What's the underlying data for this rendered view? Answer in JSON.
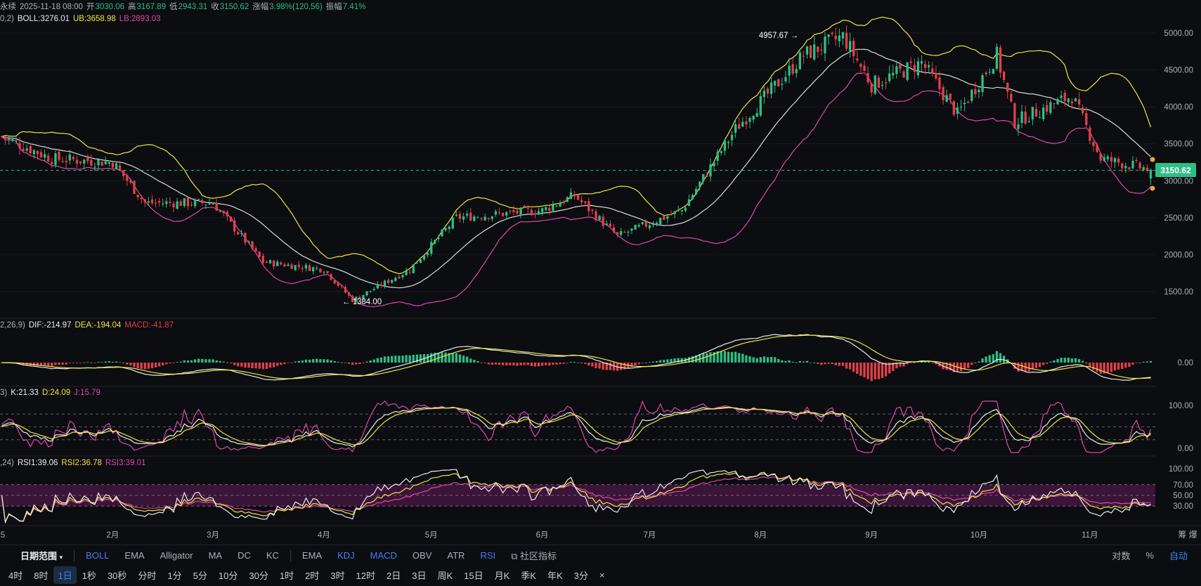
{
  "header": {
    "pair_suffix": "永续",
    "date": "2025-11-18 08:00",
    "open_label": "开",
    "open": "3030.06",
    "high_label": "高",
    "high": "3167.89",
    "low_label": "低",
    "low": "2943.31",
    "close_label": "收",
    "close": "3150.62",
    "change_label": "涨幅",
    "change": "3.98%(120.56)",
    "amp_label": "振幅",
    "amp": "7.41%"
  },
  "boll": {
    "prefix": "0,2)",
    "mid": "BOLL:3276.01",
    "ub": "UB:3658.98",
    "lb": "LB:2893.03"
  },
  "macd": {
    "prefix": "2,26,9)",
    "dif": "DIF:-214.97",
    "dea": "DEA:-194.04",
    "macd": "MACD:-41.87"
  },
  "kdj": {
    "prefix": "3)",
    "k": "K:21.33",
    "d": "D:24.09",
    "j": "J:15.79"
  },
  "rsi": {
    "prefix": ",24)",
    "r1": "RSI1:39.06",
    "r2": "RSI2:36.78",
    "r3": "RSI3:39.01"
  },
  "price_axis": [
    "5000.00",
    "4500.00",
    "4000.00",
    "3500.00",
    "3000.00",
    "2500.00",
    "2000.00",
    "1500.00"
  ],
  "last_price_tag": "3150.62",
  "macd_axis": [
    "0.00"
  ],
  "kdj_axis": [
    "100.00",
    "0.00"
  ],
  "rsi_axis": [
    "100.00",
    "70.00",
    "50.00",
    "30.00"
  ],
  "x_axis": {
    "labels": [
      "5",
      "2月",
      "3月",
      "4月",
      "5月",
      "6月",
      "7月",
      "8月",
      "9月",
      "10月",
      "11月"
    ],
    "right_label": "筹 爆"
  },
  "annotations": {
    "high": "4957.67",
    "low": "1384.00"
  },
  "toolbar_main": {
    "date_range": "日期范围",
    "overlays": [
      "BOLL",
      "EMA",
      "Alligator",
      "MA",
      "DC",
      "KC"
    ],
    "overlay_active": "BOLL",
    "indicators": [
      "EMA",
      "KDJ",
      "MACD",
      "OBV",
      "ATR",
      "RSI"
    ],
    "indicator_active": [
      "KDJ",
      "MACD",
      "RSI"
    ],
    "community": "社区指标",
    "right": [
      "对数",
      "%",
      "自动"
    ]
  },
  "toolbar_periods": {
    "items": [
      "4时",
      "8时",
      "1日",
      "1秒",
      "30秒",
      "分时",
      "1分",
      "5分",
      "10分",
      "30分",
      "1时",
      "2时",
      "3时",
      "12时",
      "2日",
      "3日",
      "周K",
      "15日",
      "月K",
      "季K",
      "年K",
      "3分"
    ],
    "selected": "1日",
    "close": "×"
  },
  "colors": {
    "up": "#2ebd85",
    "down": "#e0404a",
    "boll_mid": "#d9d9d9",
    "boll_ub": "#f0e442",
    "boll_lb": "#e047a8",
    "rsi_band": "#3a1538"
  },
  "chart_data": {
    "type": "candlestick",
    "title": "",
    "timeframe": "1日",
    "x_range": [
      "2025-01",
      "2025-11-18"
    ],
    "month_labels": [
      "2月",
      "3月",
      "4月",
      "5月",
      "6月",
      "7月",
      "8月",
      "9月",
      "10月",
      "11月"
    ],
    "price_ylim": [
      1400,
      5000
    ],
    "price_path_keypoints": [
      {
        "date": "2025-01-01",
        "close": 3600
      },
      {
        "date": "2025-01-15",
        "close": 3300
      },
      {
        "date": "2025-02-01",
        "close": 3250
      },
      {
        "date": "2025-02-10",
        "close": 2700
      },
      {
        "date": "2025-03-01",
        "close": 2700
      },
      {
        "date": "2025-03-15",
        "close": 1900
      },
      {
        "date": "2025-04-01",
        "close": 1800
      },
      {
        "date": "2025-04-09",
        "close": 1384
      },
      {
        "date": "2025-04-25",
        "close": 1800
      },
      {
        "date": "2025-05-08",
        "close": 2500
      },
      {
        "date": "2025-06-01",
        "close": 2600
      },
      {
        "date": "2025-06-10",
        "close": 2800
      },
      {
        "date": "2025-06-22",
        "close": 2250
      },
      {
        "date": "2025-07-10",
        "close": 2600
      },
      {
        "date": "2025-07-25",
        "close": 3700
      },
      {
        "date": "2025-08-13",
        "close": 4700
      },
      {
        "date": "2025-08-24",
        "close": 4957.67
      },
      {
        "date": "2025-09-01",
        "close": 4300
      },
      {
        "date": "2025-09-15",
        "close": 4600
      },
      {
        "date": "2025-09-25",
        "close": 3900
      },
      {
        "date": "2025-10-06",
        "close": 4700
      },
      {
        "date": "2025-10-11",
        "close": 3800
      },
      {
        "date": "2025-10-27",
        "close": 4150
      },
      {
        "date": "2025-11-04",
        "close": 3300
      },
      {
        "date": "2025-11-18",
        "close": 3150.62
      }
    ],
    "last_candle": {
      "open": 3030.06,
      "high": 3167.89,
      "low": 2943.31,
      "close": 3150.62
    },
    "boll_last": {
      "mid": 3276.01,
      "ub": 3658.98,
      "lb": 2893.03
    },
    "macd_last": {
      "dif": -214.97,
      "dea": -194.04,
      "macd": -41.87
    },
    "kdj_last": {
      "k": 21.33,
      "d": 24.09,
      "j": 15.79
    },
    "rsi_last": {
      "rsi1": 39.06,
      "rsi2": 36.78,
      "rsi3": 39.01
    },
    "rsi_levels": [
      70,
      50,
      30
    ],
    "labeled_extremes": {
      "high": 4957.67,
      "low": 1384.0
    }
  }
}
